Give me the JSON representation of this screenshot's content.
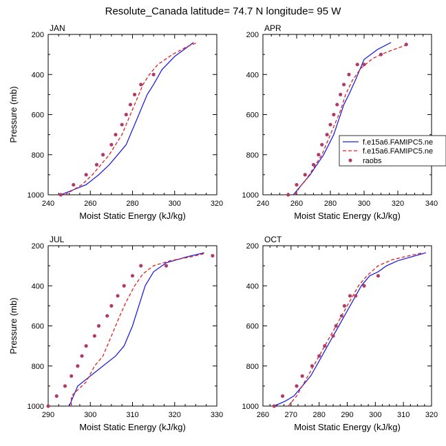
{
  "title": "Resolute_Canada  latitude= 74.7 N longitude= 95 W",
  "colors": {
    "model1": "#1f1fe0",
    "model2": "#e01f1f",
    "obs": "#b03a6a"
  },
  "legend": {
    "entries": [
      "f.e15a6.FAMIPC5.ne",
      "f.e15a6.FAMIPC5.ne",
      "raobs"
    ],
    "placement": "right of APR panel"
  },
  "chart_data": [
    {
      "type": "line",
      "panel_label": "JAN",
      "xlabel": "Moist Static Energy (kJ/kg)",
      "ylabel": "Pressure (mb)",
      "xlim": [
        240,
        320
      ],
      "ylim": [
        1000,
        200
      ],
      "xticks": [
        240,
        260,
        280,
        300,
        320
      ],
      "yticks": [
        200,
        400,
        600,
        800,
        1000
      ],
      "series": [
        {
          "style": "solid",
          "x": [
            246,
            252,
            258,
            264,
            269,
            273,
            277,
            279,
            281,
            283,
            285,
            287,
            290,
            294,
            300,
            309
          ],
          "y": [
            1000,
            975,
            950,
            900,
            850,
            800,
            750,
            700,
            650,
            600,
            550,
            500,
            450,
            375,
            310,
            240
          ]
        },
        {
          "style": "dashed",
          "x": [
            248,
            252,
            256,
            261,
            265,
            269,
            272,
            275,
            277,
            279,
            281,
            283,
            285,
            288,
            292,
            299,
            306,
            311
          ],
          "y": [
            1000,
            975,
            950,
            900,
            850,
            800,
            750,
            700,
            650,
            600,
            550,
            500,
            450,
            400,
            350,
            300,
            260,
            240
          ]
        },
        {
          "style": "markers",
          "x": [
            246,
            252,
            258,
            263,
            266,
            270,
            272,
            275,
            277,
            279,
            281,
            284,
            290
          ],
          "y": [
            1000,
            950,
            900,
            850,
            800,
            750,
            700,
            650,
            600,
            550,
            500,
            450,
            400
          ]
        }
      ]
    },
    {
      "type": "line",
      "panel_label": "APR",
      "xlabel": "Moist Static Energy (kJ/kg)",
      "ylabel": "",
      "xlim": [
        240,
        340
      ],
      "ylim": [
        1000,
        200
      ],
      "xticks": [
        240,
        260,
        280,
        300,
        320,
        340
      ],
      "yticks": [
        200,
        400,
        600,
        800,
        1000
      ],
      "series": [
        {
          "style": "solid",
          "x": [
            258,
            263,
            268,
            272,
            276,
            279,
            282,
            284,
            286,
            288,
            291,
            295,
            300,
            308,
            316
          ],
          "y": [
            1000,
            950,
            900,
            850,
            800,
            750,
            700,
            650,
            600,
            550,
            500,
            425,
            325,
            275,
            240
          ]
        },
        {
          "style": "dashed",
          "x": [
            259,
            262,
            266,
            269,
            272,
            275,
            277,
            279,
            281,
            283,
            286,
            289,
            293,
            298,
            305,
            313,
            321,
            326
          ],
          "y": [
            1000,
            960,
            920,
            880,
            840,
            800,
            760,
            720,
            680,
            640,
            580,
            500,
            430,
            370,
            320,
            290,
            265,
            250
          ]
        },
        {
          "style": "markers",
          "x": [
            255,
            260,
            265,
            270,
            273,
            275,
            278,
            280,
            282,
            284,
            286,
            288,
            291,
            296,
            300,
            310,
            325
          ],
          "y": [
            1000,
            950,
            900,
            850,
            800,
            750,
            700,
            650,
            600,
            550,
            500,
            450,
            400,
            350,
            350,
            300,
            250
          ]
        }
      ]
    },
    {
      "type": "line",
      "panel_label": "JUL",
      "xlabel": "Moist Static Energy (kJ/kg)",
      "ylabel": "Pressure (mb)",
      "xlim": [
        290,
        330
      ],
      "ylim": [
        1000,
        200
      ],
      "xticks": [
        290,
        300,
        310,
        320,
        330
      ],
      "yticks": [
        200,
        400,
        600,
        800,
        1000
      ],
      "series": [
        {
          "style": "solid",
          "x": [
            295,
            297,
            300,
            303,
            306,
            308,
            310,
            311.5,
            313,
            315,
            318,
            323,
            327
          ],
          "y": [
            1000,
            900,
            850,
            800,
            750,
            700,
            600,
            500,
            400,
            330,
            285,
            255,
            235
          ]
        },
        {
          "style": "dashed",
          "x": [
            295.5,
            295.5,
            297,
            299,
            301,
            303,
            305,
            307,
            308.5,
            310.5,
            312.5,
            315,
            319,
            324,
            327
          ],
          "y": [
            1000,
            950,
            920,
            880,
            800,
            750,
            650,
            550,
            480,
            400,
            340,
            300,
            275,
            255,
            240
          ]
        },
        {
          "style": "markers",
          "x": [
            290,
            292,
            294,
            295.5,
            297,
            298,
            299,
            301,
            302,
            304,
            305,
            306.5,
            308,
            310,
            312,
            318,
            329
          ],
          "y": [
            1000,
            950,
            900,
            850,
            800,
            750,
            700,
            650,
            600,
            550,
            500,
            450,
            400,
            350,
            300,
            300,
            250
          ]
        }
      ]
    },
    {
      "type": "line",
      "panel_label": "OCT",
      "xlabel": "Moist Static Energy (kJ/kg)",
      "ylabel": "",
      "xlim": [
        260,
        320
      ],
      "ylim": [
        1000,
        200
      ],
      "xticks": [
        260,
        270,
        280,
        290,
        300,
        310,
        320
      ],
      "yticks": [
        200,
        400,
        600,
        800,
        1000
      ],
      "series": [
        {
          "style": "solid",
          "x": [
            264,
            268,
            271,
            274,
            277,
            279,
            281,
            283,
            285,
            287,
            289,
            291,
            293,
            295,
            298,
            301,
            304,
            308,
            313,
            318
          ],
          "y": [
            1000,
            975,
            950,
            900,
            850,
            800,
            750,
            700,
            650,
            600,
            550,
            500,
            450,
            400,
            350,
            330,
            300,
            275,
            255,
            235
          ]
        },
        {
          "style": "dashed",
          "x": [
            269,
            270.5,
            272,
            274,
            276,
            278,
            280,
            282,
            284,
            286,
            288,
            290,
            292,
            294,
            297,
            301,
            306,
            312,
            317
          ],
          "y": [
            1000,
            975,
            950,
            900,
            850,
            800,
            750,
            700,
            650,
            600,
            550,
            500,
            450,
            400,
            350,
            300,
            270,
            250,
            235
          ]
        },
        {
          "style": "markers",
          "x": [
            264,
            267,
            272,
            274,
            277.5,
            280,
            282,
            285,
            286,
            288,
            289,
            291,
            293,
            296,
            301
          ],
          "y": [
            1000,
            950,
            900,
            850,
            800,
            750,
            700,
            650,
            600,
            550,
            500,
            450,
            450,
            400,
            350
          ]
        }
      ]
    }
  ]
}
